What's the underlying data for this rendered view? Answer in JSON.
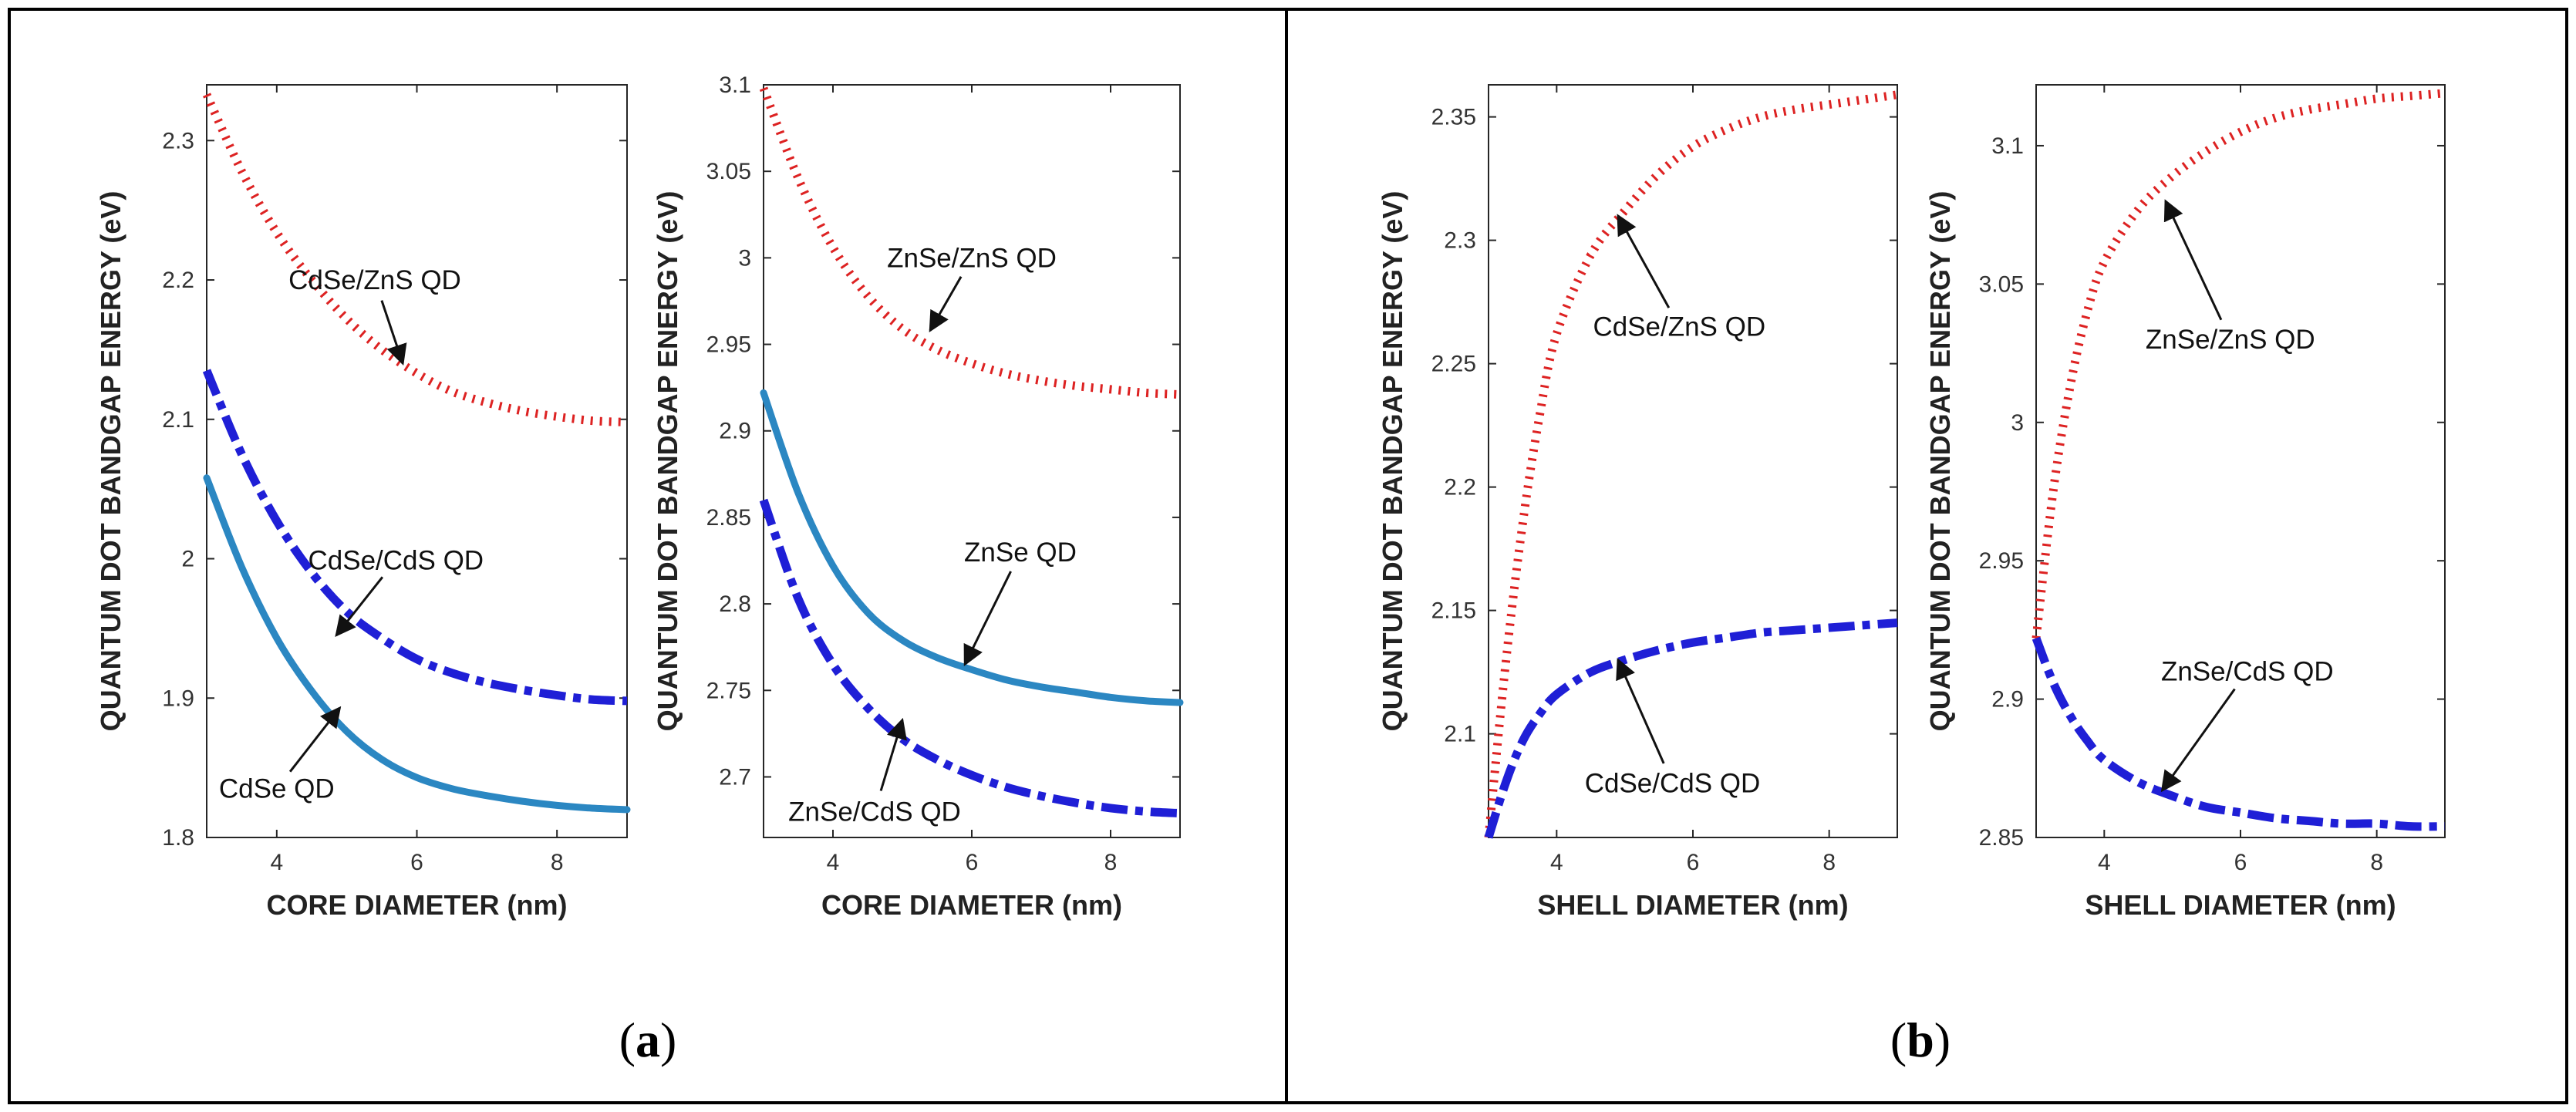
{
  "panel_labels": [
    {
      "open": "(",
      "letter": "a",
      "close": ")"
    },
    {
      "open": "(",
      "letter": "b",
      "close": ")"
    }
  ],
  "colors": {
    "red_dotted": "#dd2222",
    "blue_dashdot": "#1f1fd6",
    "teal_solid": "#2b87c2",
    "arrow": "#111111"
  },
  "chart_data": [
    {
      "type": "line",
      "panel": "a",
      "xlabel": "CORE DIAMETER (nm)",
      "ylabel": "QUANTUM DOT BANDGAP ENERGY (eV)",
      "xlim": [
        3,
        9
      ],
      "ylim": [
        1.8,
        2.34
      ],
      "xticks": [
        "4",
        "6",
        "8"
      ],
      "yticks": [
        "1.8",
        "1.9",
        "2",
        "2.1",
        "2.2",
        "2.3"
      ],
      "series": [
        {
          "name": "CdSe/ZnS QD",
          "style": "dotted",
          "x": [
            3,
            3.5,
            4,
            4.5,
            5,
            5.5,
            6,
            6.5,
            7,
            7.5,
            8,
            8.5,
            9
          ],
          "values": [
            2.333,
            2.278,
            2.234,
            2.2,
            2.172,
            2.15,
            2.133,
            2.12,
            2.112,
            2.106,
            2.102,
            2.099,
            2.098
          ]
        },
        {
          "name": "CdSe/CdS QD",
          "style": "dashdot",
          "x": [
            3,
            3.5,
            4,
            4.5,
            5,
            5.5,
            6,
            6.5,
            7,
            7.5,
            8,
            8.5,
            9
          ],
          "values": [
            2.135,
            2.075,
            2.027,
            1.99,
            1.962,
            1.943,
            1.928,
            1.918,
            1.911,
            1.906,
            1.902,
            1.899,
            1.898
          ]
        },
        {
          "name": "CdSe QD",
          "style": "solid",
          "x": [
            3,
            3.5,
            4,
            4.5,
            5,
            5.5,
            6,
            6.5,
            7,
            7.5,
            8,
            8.5,
            9
          ],
          "values": [
            2.058,
            1.994,
            1.943,
            1.905,
            1.876,
            1.856,
            1.843,
            1.835,
            1.83,
            1.826,
            1.823,
            1.821,
            1.82
          ]
        }
      ],
      "annotations": [
        {
          "text": "CdSe/ZnS QD",
          "x": 5.8,
          "y": 2.14,
          "tx": 5.4,
          "ty": 2.2
        },
        {
          "text": "CdSe/CdS QD",
          "x": 4.85,
          "y": 1.945,
          "tx": 5.7,
          "ty": 1.999
        },
        {
          "text": "CdSe QD",
          "x": 4.9,
          "y": 1.893,
          "tx": 4.0,
          "ty": 1.835
        }
      ]
    },
    {
      "type": "line",
      "panel": "a",
      "xlabel": "CORE DIAMETER (nm)",
      "ylabel": "QUANTUM DOT BANDGAP ENERGY (eV)",
      "xlim": [
        3,
        9
      ],
      "ylim": [
        2.665,
        3.1
      ],
      "xticks": [
        "4",
        "6",
        "8"
      ],
      "yticks": [
        "2.7",
        "2.75",
        "2.8",
        "2.85",
        "2.9",
        "2.95",
        "3",
        "3.05",
        "3.1"
      ],
      "series": [
        {
          "name": "ZnSe/ZnS QD",
          "style": "dotted",
          "x": [
            3,
            3.5,
            4,
            4.5,
            5,
            5.5,
            6,
            6.5,
            7,
            7.5,
            8,
            8.5,
            9
          ],
          "values": [
            3.098,
            3.046,
            3.006,
            2.978,
            2.959,
            2.947,
            2.939,
            2.933,
            2.929,
            2.926,
            2.924,
            2.922,
            2.921
          ]
        },
        {
          "name": "ZnSe QD",
          "style": "solid",
          "x": [
            3,
            3.5,
            4,
            4.5,
            5,
            5.5,
            6,
            6.5,
            7,
            7.5,
            8,
            8.5,
            9
          ],
          "values": [
            2.922,
            2.864,
            2.822,
            2.795,
            2.779,
            2.769,
            2.762,
            2.756,
            2.752,
            2.749,
            2.746,
            2.744,
            2.743
          ]
        },
        {
          "name": "ZnSe/CdS QD",
          "style": "dashdot",
          "x": [
            3,
            3.5,
            4,
            4.5,
            5,
            5.5,
            6,
            6.5,
            7,
            7.5,
            8,
            8.5,
            9
          ],
          "values": [
            2.86,
            2.803,
            2.765,
            2.74,
            2.722,
            2.71,
            2.701,
            2.694,
            2.689,
            2.685,
            2.682,
            2.68,
            2.679
          ]
        }
      ],
      "annotations": [
        {
          "text": "ZnSe/ZnS QD",
          "x": 5.4,
          "y": 2.958,
          "tx": 6.0,
          "ty": 3.0
        },
        {
          "text": "ZnSe QD",
          "x": 5.9,
          "y": 2.765,
          "tx": 6.7,
          "ty": 2.83
        },
        {
          "text": "ZnSe/CdS QD",
          "x": 5.0,
          "y": 2.733,
          "tx": 4.6,
          "ty": 2.68
        }
      ]
    },
    {
      "type": "line",
      "panel": "b",
      "xlabel": "SHELL DIAMETER (nm)",
      "ylabel": "QUANTUM DOT BANDGAP ENERGY (eV)",
      "xlim": [
        3,
        9
      ],
      "ylim": [
        2.058,
        2.363
      ],
      "xticks": [
        "4",
        "6",
        "8"
      ],
      "yticks": [
        "2.1",
        "2.15",
        "2.2",
        "2.25",
        "2.3",
        "2.35"
      ],
      "series": [
        {
          "name": "CdSe/ZnS QD",
          "style": "dotted",
          "x": [
            3,
            3.25,
            3.5,
            3.75,
            4,
            4.5,
            5,
            5.5,
            6,
            6.5,
            7,
            7.5,
            8,
            8.5,
            9
          ],
          "values": [
            2.058,
            2.128,
            2.185,
            2.229,
            2.262,
            2.294,
            2.312,
            2.327,
            2.338,
            2.345,
            2.35,
            2.353,
            2.355,
            2.357,
            2.359
          ]
        },
        {
          "name": "CdSe/CdS QD",
          "style": "dashdot",
          "x": [
            3,
            3.25,
            3.5,
            3.75,
            4,
            4.5,
            5,
            5.5,
            6,
            6.5,
            7,
            7.5,
            8,
            8.5,
            9
          ],
          "values": [
            2.058,
            2.08,
            2.097,
            2.108,
            2.116,
            2.125,
            2.13,
            2.134,
            2.137,
            2.139,
            2.141,
            2.142,
            2.143,
            2.144,
            2.145
          ]
        }
      ],
      "annotations": [
        {
          "text": "CdSe/ZnS QD",
          "x": 4.9,
          "y": 2.31,
          "tx": 5.8,
          "ty": 2.265
        },
        {
          "text": "CdSe/CdS QD",
          "x": 4.9,
          "y": 2.13,
          "tx": 5.7,
          "ty": 2.08
        }
      ]
    },
    {
      "type": "line",
      "panel": "b",
      "xlabel": "SHELL DIAMETER (nm)",
      "ylabel": "QUANTUM DOT BANDGAP ENERGY (eV)",
      "xlim": [
        3,
        9
      ],
      "ylim": [
        2.85,
        3.122
      ],
      "xticks": [
        "4",
        "6",
        "8"
      ],
      "yticks": [
        "2.85",
        "2.9",
        "2.95",
        "3",
        "3.05",
        "3.1"
      ],
      "series": [
        {
          "name": "ZnSe/ZnS QD",
          "style": "dotted",
          "x": [
            3,
            3.25,
            3.5,
            3.75,
            4,
            4.5,
            5,
            5.5,
            6,
            6.5,
            7,
            7.5,
            8,
            8.5,
            9
          ],
          "values": [
            2.922,
            2.975,
            3.013,
            3.04,
            3.058,
            3.077,
            3.089,
            3.098,
            3.105,
            3.11,
            3.113,
            3.115,
            3.117,
            3.118,
            3.119
          ]
        },
        {
          "name": "ZnSe/CdS QD",
          "style": "dashdot",
          "x": [
            3,
            3.25,
            3.5,
            3.75,
            4,
            4.5,
            5,
            5.5,
            6,
            6.5,
            7,
            7.5,
            8,
            8.5,
            9
          ],
          "values": [
            2.922,
            2.906,
            2.894,
            2.885,
            2.878,
            2.87,
            2.865,
            2.861,
            2.859,
            2.857,
            2.856,
            2.855,
            2.855,
            2.854,
            2.854
          ]
        }
      ],
      "annotations": [
        {
          "text": "ZnSe/ZnS QD",
          "x": 4.9,
          "y": 3.08,
          "tx": 5.85,
          "ty": 3.03
        },
        {
          "text": "ZnSe/CdS QD",
          "x": 4.85,
          "y": 2.867,
          "tx": 6.1,
          "ty": 2.91
        }
      ]
    }
  ]
}
